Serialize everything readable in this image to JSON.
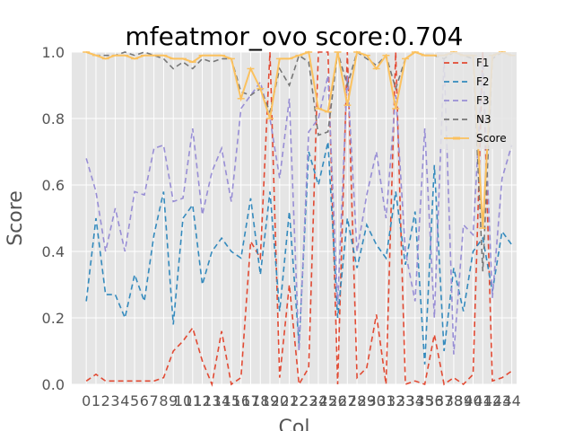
{
  "chart_data": {
    "type": "line",
    "title": "mfeatmor_ovo score:0.704",
    "xlabel": "Col",
    "ylabel": "Score",
    "ylim": [
      0.0,
      1.0
    ],
    "xlim": [
      -1.5,
      44.5
    ],
    "x": [
      0,
      1,
      2,
      3,
      4,
      5,
      6,
      7,
      8,
      9,
      10,
      11,
      12,
      13,
      14,
      15,
      16,
      17,
      18,
      19,
      20,
      21,
      22,
      23,
      24,
      25,
      26,
      27,
      28,
      29,
      30,
      31,
      32,
      33,
      34,
      35,
      36,
      37,
      38,
      39,
      40,
      41,
      42,
      43,
      44
    ],
    "x_tick_labels": [
      "0",
      "1",
      "2",
      "3",
      "4",
      "5",
      "6",
      "7",
      "8",
      "9",
      "10",
      "11",
      "12",
      "13",
      "14",
      "15",
      "16",
      "17",
      "18",
      "19",
      "20",
      "21",
      "22",
      "23",
      "24",
      "25",
      "26",
      "27",
      "28",
      "29",
      "30",
      "31",
      "32",
      "33",
      "34",
      "35",
      "36",
      "37",
      "38",
      "39",
      "40",
      "41",
      "42",
      "43",
      "44"
    ],
    "y_ticks": [
      0.0,
      0.2,
      0.4,
      0.6,
      0.8,
      1.0
    ],
    "y_tick_labels": [
      "0.0",
      "0.2",
      "0.4",
      "0.6",
      "0.8",
      "1.0"
    ],
    "grid": true,
    "legend_position": "top-right",
    "series": [
      {
        "name": "F1",
        "color": "#e24a33",
        "dash": "6,4",
        "values": [
          0.01,
          0.03,
          0.01,
          0.01,
          0.01,
          0.01,
          0.01,
          0.01,
          0.02,
          0.1,
          0.13,
          0.17,
          0.07,
          0.0,
          0.16,
          0.0,
          0.02,
          0.43,
          0.38,
          1.0,
          0.02,
          0.3,
          0.0,
          0.05,
          1.0,
          1.0,
          0.0,
          1.0,
          0.02,
          0.05,
          0.21,
          0.0,
          1.0,
          0.0,
          0.01,
          0.0,
          0.15,
          0.0,
          0.02,
          0.0,
          0.03,
          1.0,
          0.01,
          0.02,
          0.04
        ]
      },
      {
        "name": "F2",
        "color": "#348abd",
        "dash": "6,4",
        "values": [
          0.25,
          0.5,
          0.27,
          0.27,
          0.2,
          0.33,
          0.25,
          0.45,
          0.58,
          0.18,
          0.5,
          0.54,
          0.3,
          0.4,
          0.44,
          0.4,
          0.38,
          0.56,
          0.33,
          0.58,
          0.22,
          0.52,
          0.12,
          0.7,
          0.6,
          0.73,
          0.2,
          0.5,
          0.35,
          0.48,
          0.42,
          0.38,
          0.58,
          0.36,
          0.52,
          0.06,
          0.66,
          0.1,
          0.35,
          0.22,
          0.4,
          0.44,
          0.28,
          0.46,
          0.42
        ]
      },
      {
        "name": "F3",
        "color": "#988ed5",
        "dash": "6,4",
        "values": [
          0.68,
          0.58,
          0.4,
          0.53,
          0.4,
          0.58,
          0.57,
          0.71,
          0.72,
          0.55,
          0.56,
          0.77,
          0.51,
          0.64,
          0.71,
          0.55,
          0.83,
          0.87,
          0.91,
          0.8,
          0.62,
          0.86,
          0.1,
          0.76,
          0.8,
          0.93,
          0.24,
          0.93,
          0.4,
          0.57,
          0.7,
          0.5,
          0.87,
          0.4,
          0.25,
          0.77,
          0.2,
          0.98,
          0.09,
          0.48,
          0.45,
          0.97,
          0.26,
          0.62,
          0.72
        ]
      },
      {
        "name": "N3",
        "color": "#777777",
        "dash": "6,4",
        "values": [
          1.0,
          0.99,
          0.99,
          0.99,
          1.0,
          0.99,
          1.0,
          0.99,
          0.98,
          0.95,
          0.97,
          0.95,
          0.98,
          0.97,
          0.98,
          0.98,
          0.88,
          0.87,
          0.89,
          0.82,
          0.95,
          0.9,
          0.99,
          0.97,
          0.75,
          0.76,
          1.0,
          0.9,
          1.0,
          0.98,
          0.96,
          0.99,
          0.89,
          0.98,
          1.0,
          0.99,
          0.99,
          0.98,
          1.0,
          0.99,
          0.98,
          0.34,
          0.98,
          1.0,
          0.99
        ]
      },
      {
        "name": "Score",
        "color": "#fbc15e",
        "dash": "",
        "values": [
          1.0,
          0.99,
          0.98,
          0.99,
          0.99,
          0.98,
          0.99,
          0.99,
          0.99,
          0.98,
          0.98,
          0.97,
          0.99,
          0.99,
          0.99,
          0.98,
          0.86,
          0.95,
          0.89,
          0.8,
          0.98,
          0.98,
          0.99,
          1.0,
          0.83,
          0.82,
          1.0,
          0.84,
          1.0,
          0.99,
          0.95,
          0.99,
          0.83,
          0.98,
          1.0,
          0.99,
          0.99,
          0.99,
          1.0,
          0.99,
          0.99,
          0.47,
          0.99,
          1.0,
          0.99
        ]
      }
    ]
  }
}
